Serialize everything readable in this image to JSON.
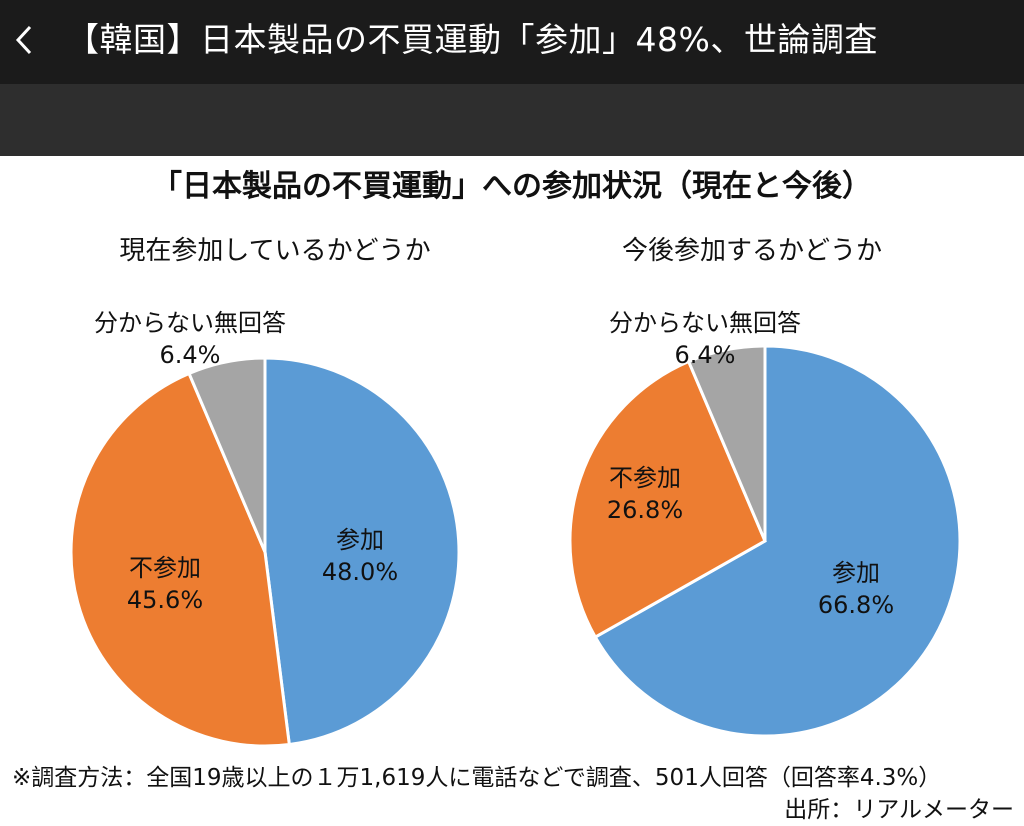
{
  "header": {
    "title": "【韓国】日本製品の不買運動「参加」48%、世論調査"
  },
  "chart_data": {
    "type": "pie",
    "title": "「日本製品の不買運動」への参加状況（現在と今後）",
    "colors": {
      "participate": "#5b9bd5",
      "not_participate": "#ed7d31",
      "unknown": "#a5a5a5"
    },
    "charts": [
      {
        "subtitle": "現在参加しているかどうか",
        "slices": [
          {
            "key": "participate",
            "label": "参加",
            "value": 48.0,
            "value_text": "48.0%"
          },
          {
            "key": "not_participate",
            "label": "不参加",
            "value": 45.6,
            "value_text": "45.6%"
          },
          {
            "key": "unknown",
            "label": "分からない無回答",
            "value": 6.4,
            "value_text": "6.4%"
          }
        ]
      },
      {
        "subtitle": "今後参加するかどうか",
        "slices": [
          {
            "key": "participate",
            "label": "参加",
            "value": 66.8,
            "value_text": "66.8%"
          },
          {
            "key": "not_participate",
            "label": "不参加",
            "value": 26.8,
            "value_text": "26.8%"
          },
          {
            "key": "unknown",
            "label": "分からない無回答",
            "value": 6.4,
            "value_text": "6.4%"
          }
        ]
      }
    ],
    "footnote": "※調査方法：全国19歳以上の１万1,619人に電話などで調査、501人回答（回答率4.3%）",
    "source": "出所：リアルメーター"
  }
}
